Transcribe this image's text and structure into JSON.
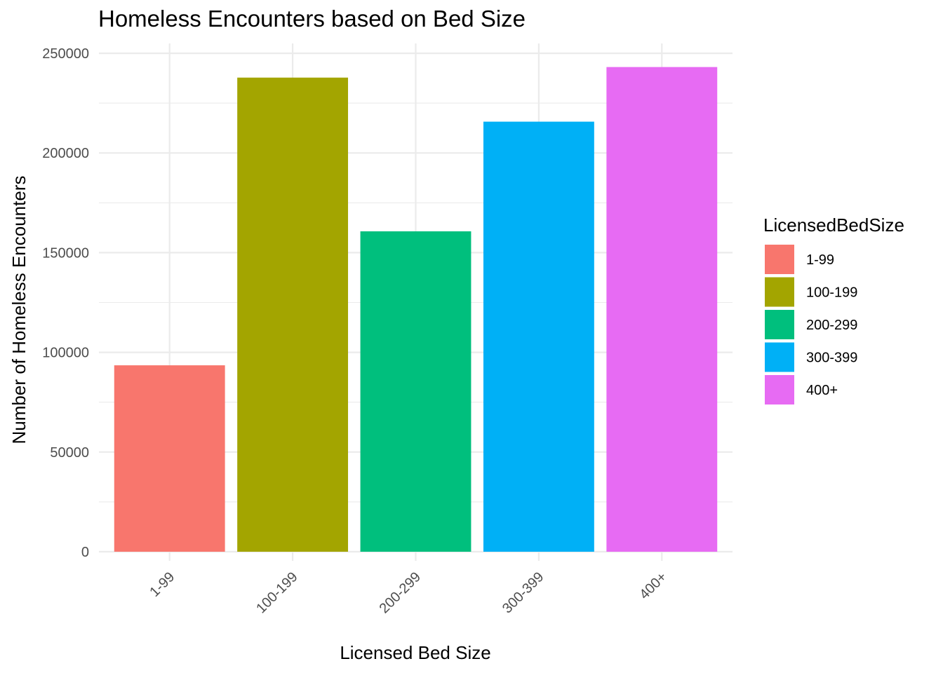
{
  "chart_data": {
    "type": "bar",
    "title": "Homeless Encounters based on Bed Size",
    "xlabel": "Licensed Bed Size",
    "ylabel": "Number of Homeless Encounters",
    "categories": [
      "1-99",
      "100-199",
      "200-299",
      "300-399",
      "400+"
    ],
    "values": [
      93500,
      237800,
      160700,
      215700,
      243100
    ],
    "colors": [
      "#F8766D",
      "#A3A500",
      "#00BF7D",
      "#00B0F6",
      "#E76BF3"
    ],
    "ylim": [
      0,
      250000
    ],
    "yticks": [
      0,
      50000,
      100000,
      150000,
      200000,
      250000
    ],
    "ytick_labels": [
      "0",
      "50000",
      "100000",
      "150000",
      "200000",
      "250000"
    ],
    "grid": true,
    "x_tick_rotation_deg": 45,
    "legend": {
      "title": "LicensedBedSize",
      "position": "right",
      "entries": [
        "1-99",
        "100-199",
        "200-299",
        "300-399",
        "400+"
      ]
    }
  }
}
